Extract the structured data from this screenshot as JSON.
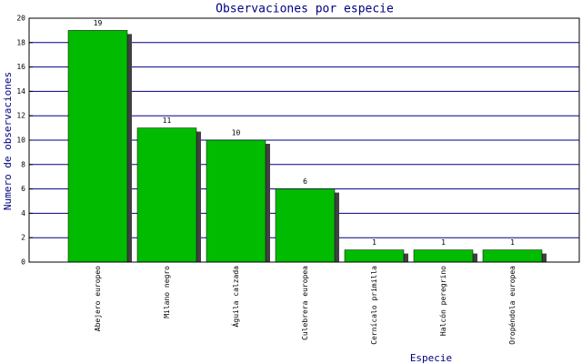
{
  "chart_data": {
    "type": "bar",
    "title": "Observaciones por especie",
    "x_label": "Especie",
    "y_label": "Numero de observaciones",
    "categories": [
      "Abejero europeo",
      "Milano negro",
      "Águila calzada",
      "Culebrera europea",
      "Cernícalo primilla",
      "Halcón peregrino",
      "Oropéndola europea"
    ],
    "values": [
      19,
      11,
      10,
      6,
      1,
      1,
      1
    ],
    "color": "#00bb00",
    "shadow_color": "#404040",
    "grid_color": "#000080",
    "ylim": [
      0,
      20
    ],
    "yticks": [
      0,
      2,
      4,
      6,
      8,
      10,
      12,
      14,
      16,
      18,
      20
    ],
    "grid": true,
    "show_value_labels": true
  }
}
